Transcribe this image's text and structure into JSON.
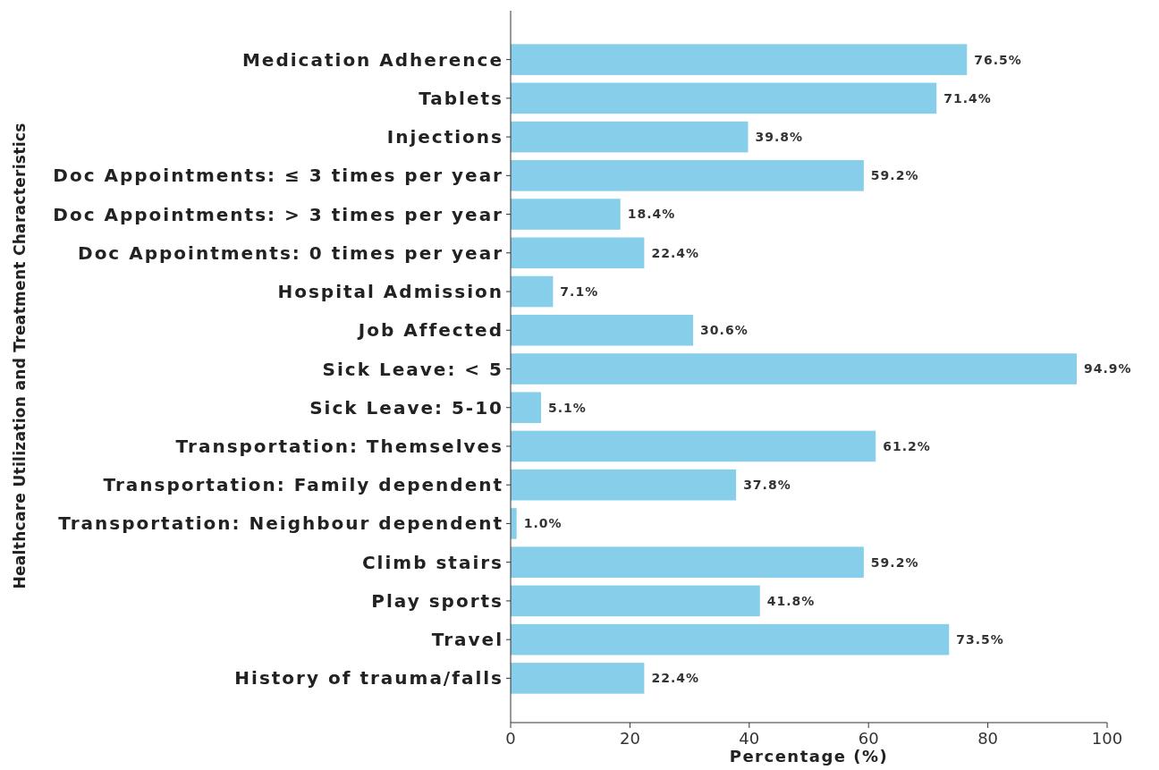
{
  "chart_data": {
    "type": "bar",
    "orientation": "horizontal",
    "xlabel": "Percentage (%)",
    "ylabel": "Healthcare Utilization and Treatment Characteristics",
    "categories": [
      "Medication Adherence",
      "Tablets",
      "Injections",
      "Doc Appointments: ≤ 3 times per year",
      "Doc Appointments: > 3 times per year",
      "Doc Appointments: 0 times per year",
      "Hospital Admission",
      "Job Affected",
      "Sick Leave: < 5",
      "Sick Leave: 5-10",
      "Transportation: Themselves",
      "Transportation: Family dependent",
      "Transportation: Neighbour dependent",
      "Climb stairs",
      "Play sports",
      "Travel",
      "History of trauma/falls"
    ],
    "values": [
      76.5,
      71.4,
      39.8,
      59.2,
      18.4,
      22.4,
      7.1,
      30.6,
      94.9,
      5.1,
      61.2,
      37.8,
      1.0,
      59.2,
      41.8,
      73.5,
      22.4
    ],
    "value_labels": [
      "76.5%",
      "71.4%",
      "39.8%",
      "59.2%",
      "18.4%",
      "22.4%",
      "7.1%",
      "30.6%",
      "94.9%",
      "5.1%",
      "61.2%",
      "37.8%",
      "1.0%",
      "59.2%",
      "41.8%",
      "73.5%",
      "22.4%"
    ],
    "color": "#87ceeb",
    "xlim": [
      0,
      100
    ],
    "xticks": [
      0,
      20,
      40,
      60,
      80,
      100
    ],
    "grid": false
  }
}
